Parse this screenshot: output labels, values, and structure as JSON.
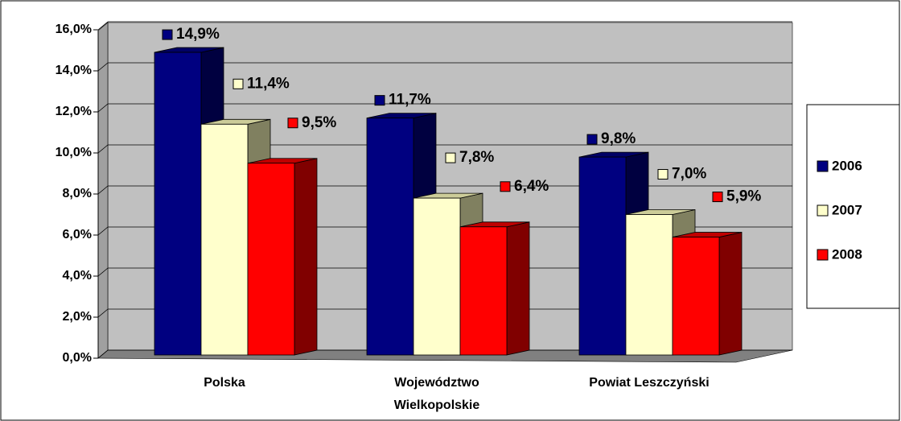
{
  "chart_data": {
    "type": "bar3d",
    "categories": [
      "Polska",
      "Województwo Wielkopolskie",
      "Powiat Leszczyński"
    ],
    "series": [
      {
        "name": "2006",
        "color": "#000080",
        "values": [
          14.9,
          11.7,
          9.8
        ],
        "value_labels": [
          "14,9%",
          "11,7%",
          "9,8%"
        ]
      },
      {
        "name": "2007",
        "color": "#FFFFCC",
        "values": [
          11.4,
          7.8,
          7.0
        ],
        "value_labels": [
          "11,4%",
          "7,8%",
          "7,0%"
        ]
      },
      {
        "name": "2008",
        "color": "#FF0000",
        "values": [
          9.5,
          6.4,
          5.9
        ],
        "value_labels": [
          "9,5%",
          "6,4%",
          "5,9%"
        ]
      }
    ],
    "ylim": [
      0,
      16
    ],
    "yticks": [
      {
        "value": 0,
        "label": "0,0%"
      },
      {
        "value": 2,
        "label": "2,0%"
      },
      {
        "value": 4,
        "label": "4,0%"
      },
      {
        "value": 6,
        "label": "6,0%"
      },
      {
        "value": 8,
        "label": "8,0%"
      },
      {
        "value": 10,
        "label": "10,0%"
      },
      {
        "value": 12,
        "label": "12,0%"
      },
      {
        "value": 14,
        "label": "14,0%"
      },
      {
        "value": 16,
        "label": "16,0%"
      }
    ],
    "grid": true,
    "legend": "right"
  }
}
